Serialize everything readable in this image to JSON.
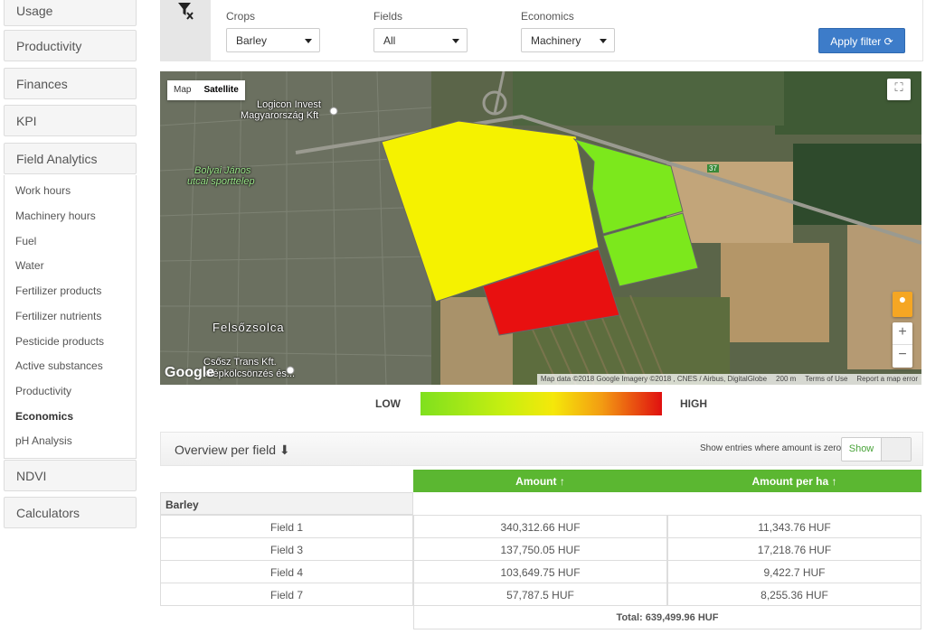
{
  "sidebar": {
    "main_items": [
      "Usage",
      "Productivity",
      "Finances",
      "KPI",
      "Field Analytics",
      "NDVI",
      "Calculators"
    ],
    "sub_items": [
      "Work hours",
      "Machinery hours",
      "Fuel",
      "Water",
      "Fertilizer products",
      "Fertilizer nutrients",
      "Pesticide products",
      "Active substances",
      "Productivity",
      "Economics",
      "pH Analysis"
    ],
    "active_sub": "Economics"
  },
  "filters": {
    "crops": {
      "label": "Crops",
      "value": "Barley"
    },
    "fields": {
      "label": "Fields",
      "value": "All"
    },
    "economics": {
      "label": "Economics",
      "value": "Machinery"
    },
    "apply_label": "Apply filter"
  },
  "map": {
    "type_map": "Map",
    "type_satellite": "Satellite",
    "labels": {
      "logicon": "Logicon Invest",
      "logicon2": "Magyarország Kft",
      "bolyai": "Bolyai János",
      "bolyai2": "utcai sporttelep",
      "felsozsolca": "Felsőzsolca",
      "csosz": "Csősz Trans Kft.",
      "csosz2": "Gépkölcsönzés és...",
      "road": "37",
      "google": "Google"
    },
    "attribution": {
      "data": "Map data ©2018 Google Imagery ©2018 , CNES / Airbus, DigitalGlobe",
      "scale": "200 m",
      "terms": "Terms of Use",
      "report": "Report a map error"
    },
    "zoom_in": "+",
    "zoom_out": "−",
    "colors": {
      "low": "#7fe01e",
      "mid": "#f3f000",
      "high": "#e01010"
    }
  },
  "legend": {
    "low": "LOW",
    "high": "HIGH"
  },
  "overview": {
    "title": "Overview per field ⬇",
    "zero_label": "Show entries where amount is zero?",
    "show_label": "Show"
  },
  "table": {
    "headers": {
      "amount": "Amount ↑",
      "amount_per_ha": "Amount per ha ↑"
    },
    "group": "Barley",
    "rows": [
      {
        "field": "Field 1",
        "amount": "340,312.66 HUF",
        "per_ha": "11,343.76 HUF"
      },
      {
        "field": "Field 3",
        "amount": "137,750.05 HUF",
        "per_ha": "17,218.76 HUF"
      },
      {
        "field": "Field 4",
        "amount": "103,649.75 HUF",
        "per_ha": "9,422.7 HUF"
      },
      {
        "field": "Field 7",
        "amount": "57,787.5 HUF",
        "per_ha": "8,255.36 HUF"
      }
    ],
    "total": "Total: 639,499.96 HUF"
  }
}
